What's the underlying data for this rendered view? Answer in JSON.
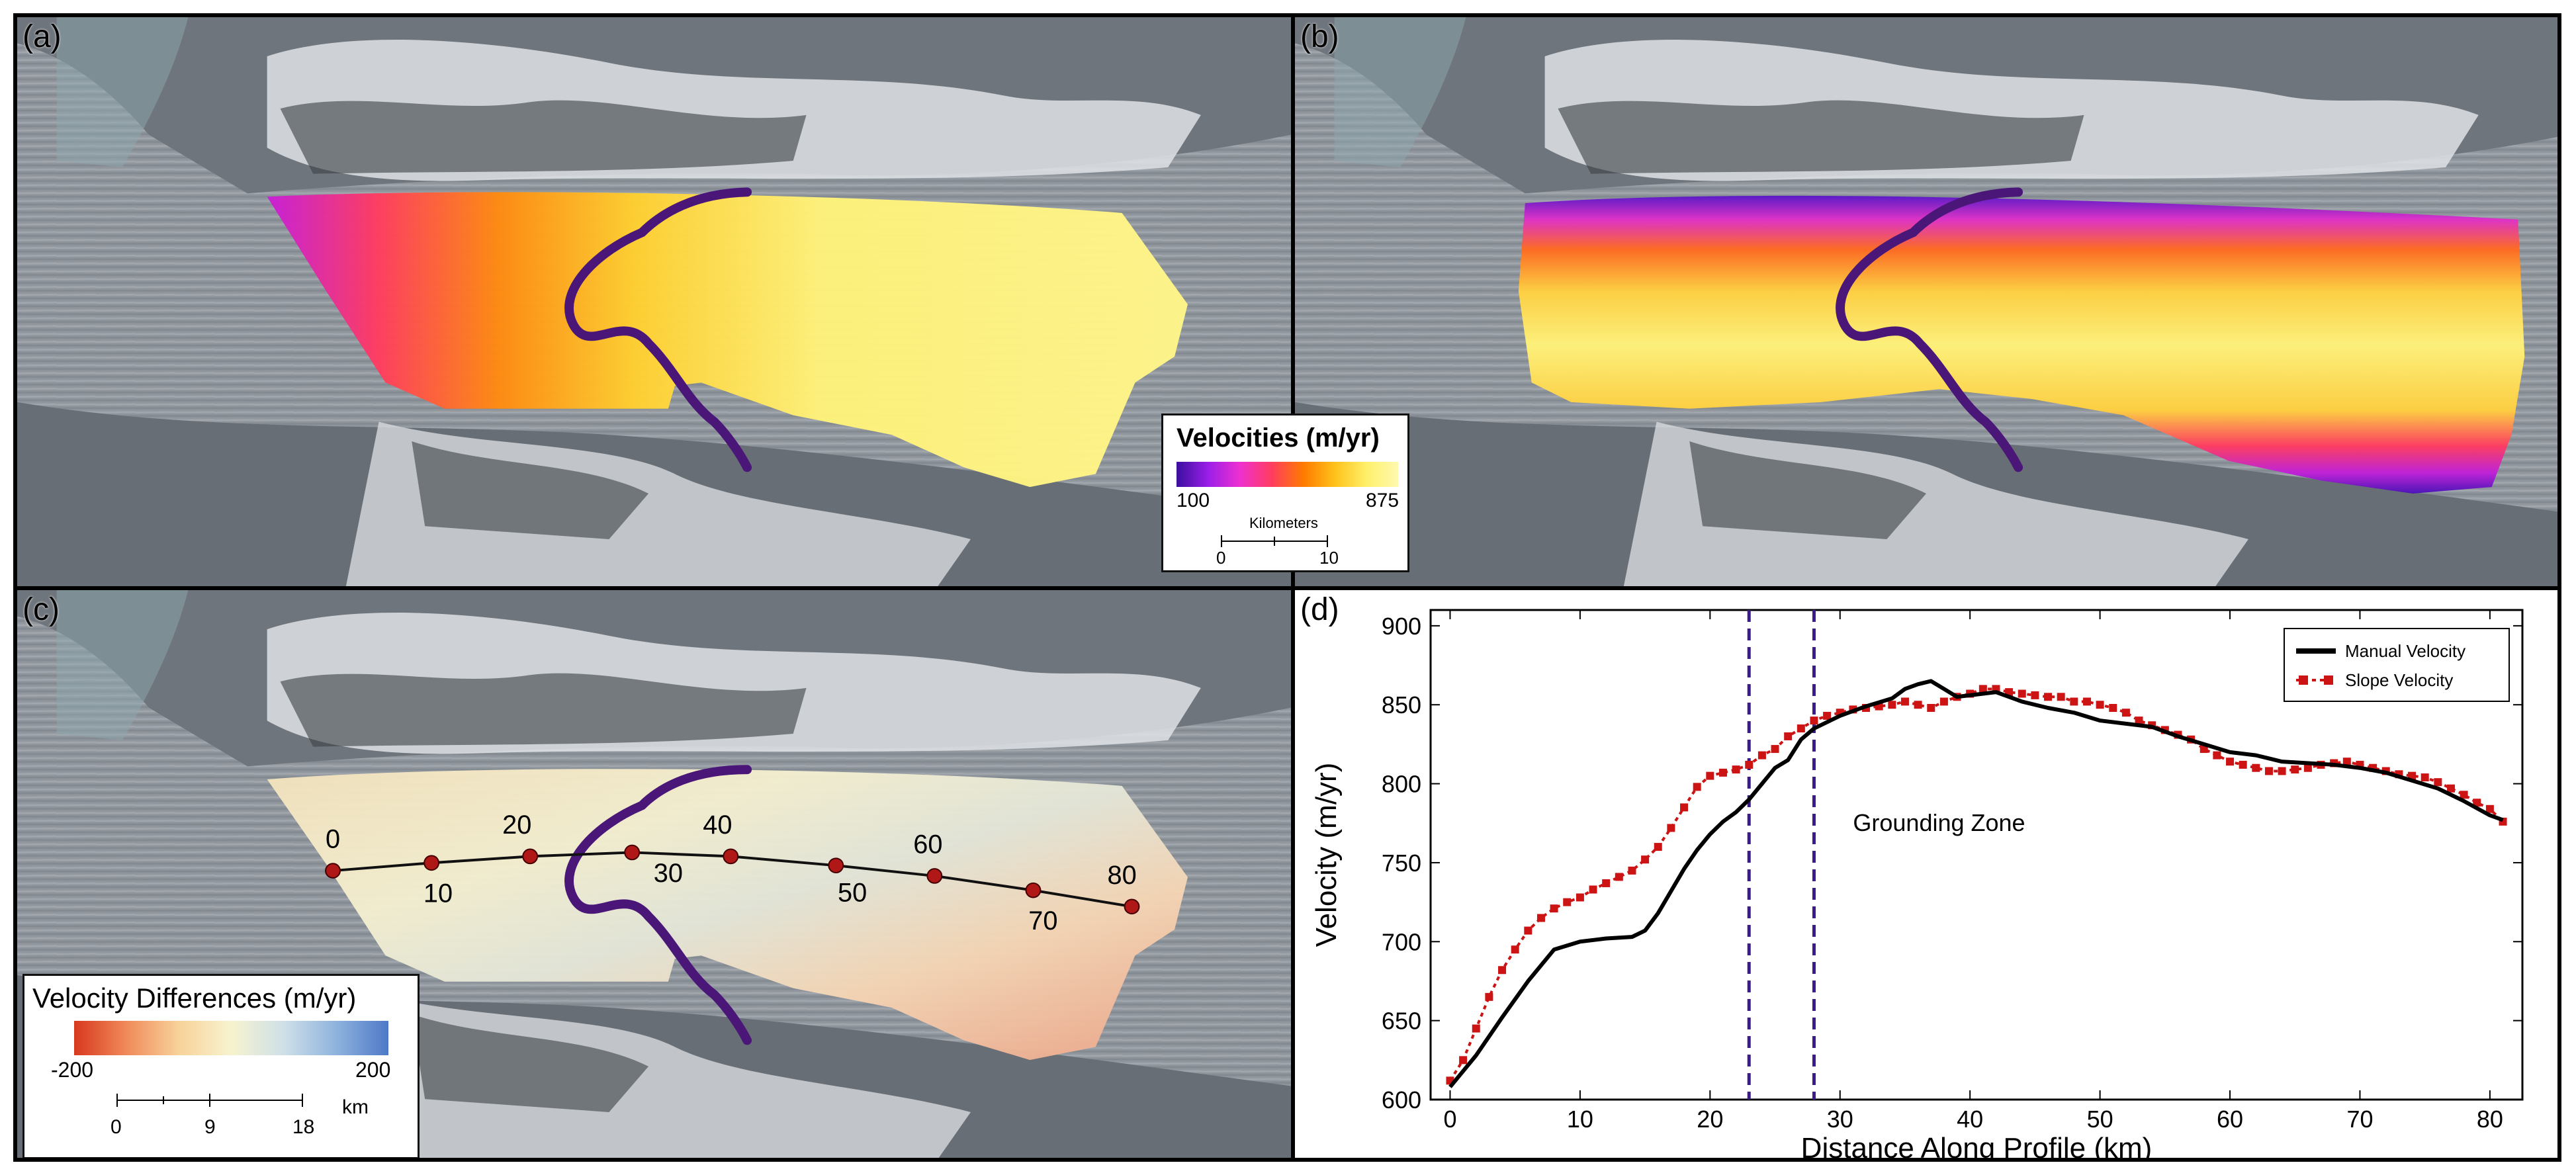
{
  "panels": {
    "a": {
      "label": "(a)"
    },
    "b": {
      "label": "(b)"
    },
    "c": {
      "label": "(c)"
    },
    "d": {
      "label": "(d)"
    }
  },
  "velocity_legend": {
    "title": "Velocities   (m/yr)",
    "min_label": "100",
    "max_label": "875",
    "scale_title": "Kilometers",
    "scale_ticks": [
      "0",
      "10"
    ],
    "colors": [
      "#3b0f9f",
      "#9b1ee8",
      "#ee30d0",
      "#ff3c60",
      "#ff7a00",
      "#ffc21a",
      "#fff06a",
      "#fff9b0"
    ]
  },
  "difference_legend": {
    "title": "Velocity Differences (m/yr)",
    "min_label": "-200",
    "max_label": "200",
    "scale_ticks": [
      "0",
      "9",
      "18"
    ],
    "scale_unit": "km",
    "colors": [
      "#d7391e",
      "#f08a5a",
      "#f8d29a",
      "#f7f3cf",
      "#cfe0e8",
      "#8fb3de",
      "#4e79c7"
    ]
  },
  "profile": {
    "labels": [
      "0",
      "10",
      "20",
      "30",
      "40",
      "50",
      "60",
      "70",
      "80"
    ]
  },
  "chart_data": {
    "type": "line",
    "xlabel": "Distance Along Profile (km)",
    "ylabel": "Velocity (m/yr)",
    "xlim": [
      -1.5,
      82.5
    ],
    "ylim": [
      600,
      910
    ],
    "xticks": [
      0,
      10,
      20,
      30,
      40,
      50,
      60,
      70,
      80
    ],
    "yticks": [
      600,
      650,
      700,
      750,
      800,
      850,
      900
    ],
    "legend_position": "top-right",
    "series": [
      {
        "name": "Manual Velocity",
        "color": "#000000",
        "style": "solid",
        "x": [
          0,
          2,
          4,
          6,
          8,
          10,
          12,
          14,
          15,
          16,
          17,
          18,
          19,
          20,
          21,
          22,
          23,
          24,
          25,
          26,
          27,
          28,
          30,
          32,
          34,
          35,
          36,
          37,
          38,
          39,
          40,
          42,
          44,
          46,
          48,
          50,
          52,
          54,
          56,
          58,
          60,
          62,
          64,
          66,
          68,
          70,
          72,
          74,
          76,
          78,
          80,
          81
        ],
        "values": [
          608,
          628,
          652,
          675,
          695,
          700,
          702,
          703,
          707,
          718,
          732,
          746,
          758,
          768,
          776,
          782,
          790,
          800,
          810,
          815,
          828,
          835,
          843,
          849,
          854,
          860,
          863,
          865,
          860,
          855,
          856,
          858,
          852,
          848,
          845,
          840,
          838,
          836,
          830,
          825,
          820,
          818,
          814,
          813,
          812,
          810,
          807,
          802,
          797,
          789,
          780,
          777
        ]
      },
      {
        "name": "Slope Velocity",
        "color": "#cc1414",
        "style": "dotted-markers",
        "x": [
          0,
          1,
          2,
          3,
          4,
          5,
          6,
          7,
          8,
          9,
          10,
          11,
          12,
          13,
          14,
          15,
          16,
          17,
          18,
          19,
          20,
          21,
          22,
          23,
          24,
          25,
          26,
          27,
          28,
          29,
          30,
          31,
          32,
          33,
          34,
          35,
          36,
          37,
          38,
          39,
          40,
          41,
          42,
          43,
          44,
          45,
          46,
          47,
          48,
          49,
          50,
          51,
          52,
          53,
          54,
          55,
          56,
          57,
          58,
          59,
          60,
          61,
          62,
          63,
          64,
          65,
          66,
          67,
          68,
          69,
          70,
          71,
          72,
          73,
          74,
          75,
          76,
          77,
          78,
          79,
          80,
          81
        ],
        "values": [
          612,
          625,
          645,
          665,
          682,
          695,
          707,
          715,
          721,
          725,
          728,
          733,
          737,
          741,
          745,
          752,
          760,
          772,
          785,
          798,
          805,
          807,
          809,
          812,
          818,
          822,
          830,
          835,
          840,
          843,
          845,
          847,
          848,
          849,
          850,
          852,
          850,
          848,
          852,
          855,
          857,
          860,
          860,
          858,
          857,
          856,
          855,
          855,
          852,
          852,
          850,
          848,
          845,
          840,
          837,
          834,
          831,
          828,
          822,
          818,
          814,
          812,
          810,
          808,
          808,
          809,
          810,
          812,
          813,
          814,
          812,
          810,
          808,
          806,
          805,
          804,
          801,
          797,
          793,
          788,
          784,
          776
        ]
      }
    ],
    "vlines": [
      23,
      28
    ],
    "vline_color": "#3b1a8c",
    "annotation": {
      "text": "Grounding Zone",
      "x": 31,
      "y": 770
    }
  }
}
